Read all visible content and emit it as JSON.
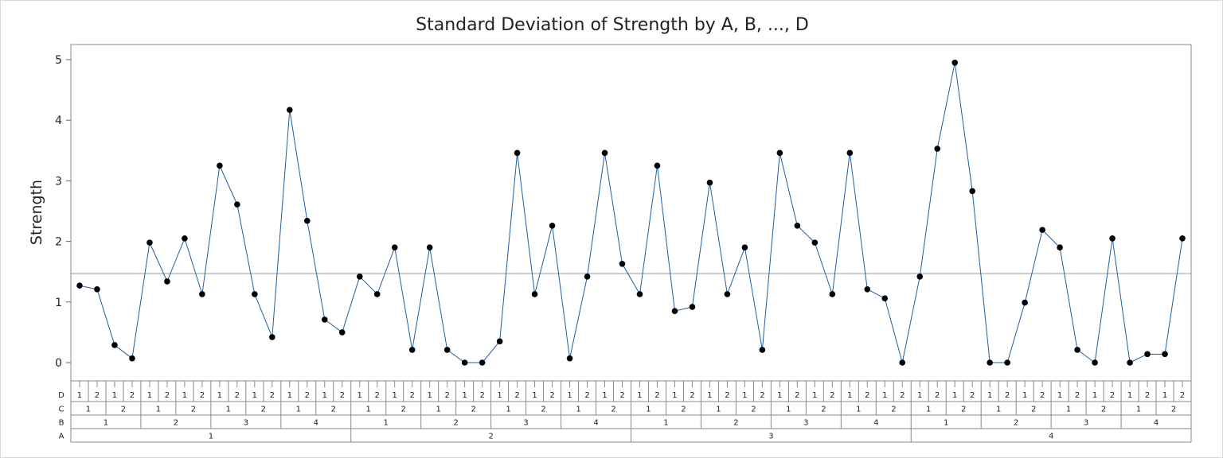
{
  "chart_data": {
    "type": "line",
    "title": "Standard Deviation of Strength by A, B, ..., D",
    "ylabel": "Strength",
    "ylim": [
      0,
      5
    ],
    "yticks": [
      0,
      1,
      2,
      3,
      4,
      5
    ],
    "reference_line": 1.47,
    "grid": false,
    "line_color": "#1f5f9f",
    "marker_color": "#000000",
    "factors": [
      {
        "name": "D",
        "levels": [
          "1",
          "2"
        ]
      },
      {
        "name": "C",
        "levels": [
          "1",
          "2"
        ]
      },
      {
        "name": "B",
        "levels": [
          "1",
          "2",
          "3",
          "4"
        ]
      },
      {
        "name": "A",
        "levels": [
          "1",
          "2",
          "3",
          "4"
        ]
      }
    ],
    "values": [
      1.27,
      1.21,
      0.29,
      0.07,
      1.98,
      1.34,
      2.05,
      1.13,
      3.25,
      2.61,
      1.13,
      0.42,
      4.17,
      2.34,
      0.71,
      0.5,
      1.42,
      1.13,
      1.9,
      0.21,
      1.9,
      0.21,
      0,
      0,
      0.35,
      3.46,
      1.13,
      2.26,
      0.07,
      1.42,
      3.46,
      1.63,
      1.13,
      3.25,
      0.85,
      0.92,
      2.97,
      1.13,
      1.9,
      0.21,
      3.46,
      2.26,
      1.98,
      1.13,
      3.46,
      1.21,
      1.06,
      0,
      1.42,
      3.53,
      4.95,
      2.83,
      0,
      0,
      0.99,
      2.19,
      1.9,
      0.21,
      0,
      2.05,
      0,
      0.14,
      0.14,
      2.05
    ]
  }
}
